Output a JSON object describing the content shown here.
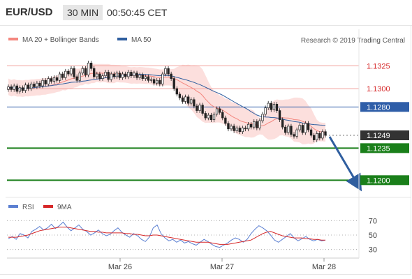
{
  "header": {
    "pair": "EUR/USD",
    "timeframe": "30 MIN",
    "time": "00:50:45 CET"
  },
  "legend": {
    "ma20_label": "MA 20 + Bollinger Bands",
    "ma50_label": "MA 50",
    "source": "Research © 2019 Trading Central",
    "ma20_color": "#f4877f",
    "ma50_color": "#2f5e9f"
  },
  "rsi_legend": {
    "rsi_label": "RSI",
    "ma9_label": "9MA",
    "rsi_color": "#5b7fd1",
    "ma9_color": "#d62728"
  },
  "colors": {
    "up": "#ffffff",
    "down": "#222222",
    "band_fill": "#fcd9d7",
    "support": "#1a7f1a",
    "pivot": "#2f5ea8",
    "resistance": "#f1a19c",
    "current": "#333333",
    "arrow": "#2f5e9f"
  },
  "chart_data": [
    {
      "type": "candlestick",
      "title": "EUR/USD 30 MIN",
      "x_tick_labels": [
        "Mar 26",
        "Mar 27",
        "Mar 28"
      ],
      "ylim": [
        1.1185,
        1.1345
      ],
      "levels": [
        {
          "label": "1.1325",
          "value": 1.1325,
          "kind": "resistance"
        },
        {
          "label": "1.1300",
          "value": 1.13,
          "kind": "resistance"
        },
        {
          "label": "1.1280",
          "value": 1.128,
          "kind": "pivot"
        },
        {
          "label": "1.1249",
          "value": 1.1249,
          "kind": "current"
        },
        {
          "label": "1.1235",
          "value": 1.1235,
          "kind": "support"
        },
        {
          "label": "1.1200",
          "value": 1.12,
          "kind": "support"
        }
      ],
      "candles_close": [
        1.1302,
        1.1299,
        1.1303,
        1.1297,
        1.1301,
        1.1298,
        1.1304,
        1.13,
        1.1305,
        1.1302,
        1.1306,
        1.1303,
        1.1309,
        1.1305,
        1.1311,
        1.1308,
        1.1312,
        1.1309,
        1.1316,
        1.1312,
        1.1319,
        1.1316,
        1.1322,
        1.1313,
        1.1309,
        1.1317,
        1.1322,
        1.1315,
        1.1328,
        1.1322,
        1.1313,
        1.1316,
        1.1311,
        1.1314,
        1.1318,
        1.131,
        1.1316,
        1.1313,
        1.1317,
        1.1312,
        1.1316,
        1.1313,
        1.1318,
        1.1314,
        1.1317,
        1.1312,
        1.1315,
        1.1311,
        1.1313,
        1.1309,
        1.131,
        1.1306,
        1.1309,
        1.1305,
        1.1316,
        1.1322,
        1.1316,
        1.1311,
        1.13,
        1.1294,
        1.129,
        1.1286,
        1.1291,
        1.1284,
        1.1288,
        1.1281,
        1.1276,
        1.1282,
        1.1273,
        1.1268,
        1.1271,
        1.1266,
        1.1272,
        1.1278,
        1.1274,
        1.1268,
        1.1262,
        1.1256,
        1.1259,
        1.1254,
        1.1257,
        1.1253,
        1.1257,
        1.1256,
        1.1261,
        1.1258,
        1.1264,
        1.1257,
        1.1265,
        1.1272,
        1.1279,
        1.1284,
        1.1277,
        1.1283,
        1.1276,
        1.1266,
        1.1258,
        1.1252,
        1.1259,
        1.125,
        1.1248,
        1.1255,
        1.126,
        1.1252,
        1.1262,
        1.1255,
        1.1249,
        1.1244,
        1.1251,
        1.1246,
        1.1253,
        1.1249
      ]
    },
    {
      "type": "line",
      "title": "RSI",
      "ylim": [
        20,
        80
      ],
      "y_ticks": [
        70,
        50,
        30
      ],
      "series": [
        {
          "name": "RSI",
          "values": [
            45,
            48,
            44,
            52,
            50,
            46,
            55,
            58,
            62,
            57,
            60,
            65,
            59,
            63,
            68,
            61,
            56,
            60,
            64,
            58,
            55,
            50,
            53,
            57,
            52,
            49,
            51,
            56,
            60,
            54,
            50,
            47,
            52,
            49,
            44,
            41,
            47,
            60,
            64,
            52,
            46,
            42,
            44,
            40,
            43,
            39,
            41,
            38,
            36,
            40,
            44,
            41,
            37,
            34,
            33,
            36,
            39,
            43,
            46,
            44,
            40,
            44,
            52,
            58,
            63,
            60,
            56,
            50,
            43,
            40,
            44,
            48,
            52,
            46,
            42,
            45,
            48,
            44,
            42,
            44,
            42,
            43
          ]
        },
        {
          "name": "9MA",
          "values": [
            47,
            47,
            47,
            48,
            49,
            50,
            52,
            54,
            56,
            57,
            58,
            59,
            60,
            61,
            61,
            61,
            60,
            59,
            58,
            57,
            56,
            55,
            55,
            54,
            54,
            53,
            53,
            53,
            53,
            53,
            52,
            52,
            51,
            51,
            50,
            49,
            49,
            50,
            50,
            49,
            48,
            47,
            46,
            45,
            44,
            43,
            42,
            41,
            40,
            40,
            40,
            40,
            39,
            38,
            37,
            37,
            37,
            38,
            39,
            40,
            41,
            42,
            43,
            46,
            49,
            52,
            54,
            55,
            53,
            51,
            49,
            48,
            47,
            46,
            46,
            46,
            45,
            45,
            44,
            44,
            43,
            43
          ]
        }
      ]
    }
  ]
}
